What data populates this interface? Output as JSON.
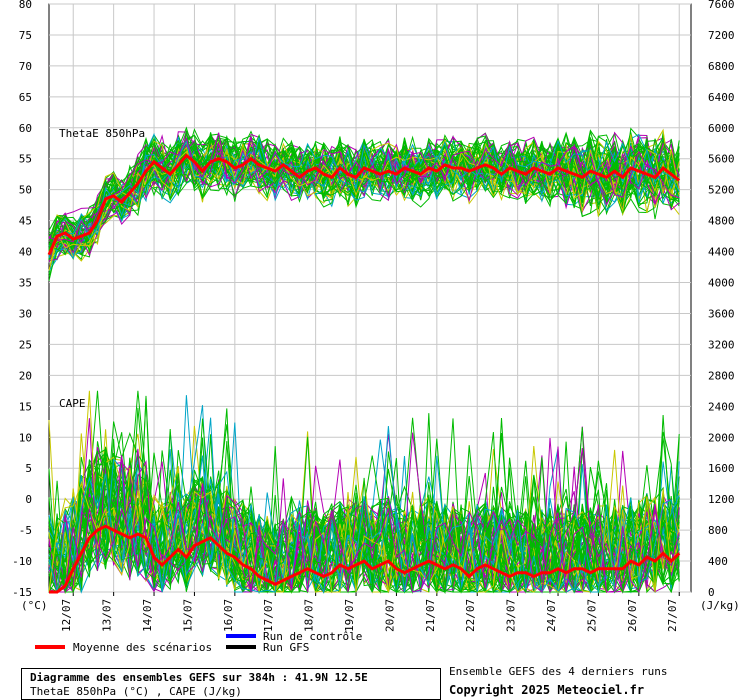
{
  "chart_data": {
    "type": "line",
    "left_axis": {
      "unit": "(°C)",
      "ticks": [
        "80",
        "75",
        "70",
        "65",
        "60",
        "55",
        "50",
        "45",
        "40",
        "35",
        "30",
        "25",
        "20",
        "15",
        "10",
        "5",
        "0",
        "-5",
        "-10",
        "-15"
      ],
      "ylim": [
        -15,
        80
      ]
    },
    "right_axis": {
      "unit": "(J/kg)",
      "ticks": [
        "7600",
        "7200",
        "6800",
        "6400",
        "6000",
        "5600",
        "5200",
        "4800",
        "4400",
        "4000",
        "3600",
        "3200",
        "2800",
        "2400",
        "2000",
        "1600",
        "1200",
        "800",
        "400",
        "0"
      ],
      "ylim": [
        0,
        7600
      ]
    },
    "x_ticks": [
      "12/07",
      "13/07",
      "14/07",
      "15/07",
      "16/07",
      "17/07",
      "18/07",
      "19/07",
      "20/07",
      "21/07",
      "22/07",
      "23/07",
      "24/07",
      "25/07",
      "26/07",
      "27/07"
    ],
    "grid": true,
    "panel_labels": [
      "ThetaE 850hPa",
      "CAPE"
    ],
    "series": [
      {
        "name": "Moyenne des scénarios",
        "color": "#ff0000",
        "axis": "left",
        "x": [
          11.4,
          11.6,
          11.8,
          12.0,
          12.2,
          12.4,
          12.6,
          12.8,
          13.0,
          13.2,
          13.4,
          13.6,
          13.8,
          14.0,
          14.2,
          14.4,
          14.6,
          14.8,
          15.0,
          15.2,
          15.4,
          15.6,
          15.8,
          16.0,
          16.2,
          16.4,
          16.6,
          16.8,
          17.0,
          17.2,
          17.4,
          17.6,
          17.8,
          18.0,
          18.2,
          18.4,
          18.6,
          18.8,
          19.0,
          19.2,
          19.4,
          19.6,
          19.8,
          20.0,
          20.2,
          20.4,
          20.6,
          20.8,
          21.0,
          21.2,
          21.4,
          21.6,
          21.8,
          22.0,
          22.2,
          22.4,
          22.6,
          22.8,
          23.0,
          23.2,
          23.4,
          23.6,
          23.8,
          24.0,
          24.2,
          24.4,
          24.6,
          24.8,
          25.0,
          25.2,
          25.4,
          25.6,
          25.8,
          26.0,
          26.2,
          26.4,
          26.6,
          26.8,
          27.0
        ],
        "y": [
          39.5,
          42.5,
          43,
          42,
          42.5,
          43,
          45,
          48.5,
          49,
          48,
          49.5,
          51,
          53,
          54.5,
          53.5,
          52.5,
          54,
          55.5,
          54.5,
          53,
          54.5,
          55,
          54.5,
          53.5,
          54,
          55,
          54,
          53.5,
          53,
          54,
          53,
          52,
          53,
          53.5,
          52.5,
          52,
          53.5,
          52.5,
          52,
          53.5,
          53,
          52.5,
          53,
          52.5,
          53.5,
          53,
          52.5,
          53.5,
          53,
          54,
          53.5,
          53.5,
          53,
          53.5,
          54,
          53.5,
          52.5,
          53.5,
          53,
          52.5,
          53.5,
          53,
          52.5,
          53.5,
          53,
          52.5,
          52,
          53,
          52.5,
          52,
          53,
          52,
          53.5,
          53,
          52.5,
          52,
          53.5,
          52.5,
          51.5
        ]
      },
      {
        "name": "Moyenne des scénarios",
        "color": "#ff0000",
        "axis": "right",
        "x": [
          11.4,
          11.6,
          11.8,
          12.0,
          12.2,
          12.4,
          12.6,
          12.8,
          13.0,
          13.2,
          13.4,
          13.6,
          13.8,
          14.0,
          14.2,
          14.4,
          14.6,
          14.8,
          15.0,
          15.2,
          15.4,
          15.6,
          15.8,
          16.0,
          16.2,
          16.4,
          16.6,
          16.8,
          17.0,
          17.2,
          17.4,
          17.6,
          17.8,
          18.0,
          18.2,
          18.4,
          18.6,
          18.8,
          19.0,
          19.2,
          19.4,
          19.6,
          19.8,
          20.0,
          20.2,
          20.4,
          20.6,
          20.8,
          21.0,
          21.2,
          21.4,
          21.6,
          21.8,
          22.0,
          22.2,
          22.4,
          22.6,
          22.8,
          23.0,
          23.2,
          23.4,
          23.6,
          23.8,
          24.0,
          24.2,
          24.4,
          24.6,
          24.8,
          25.0,
          25.2,
          25.4,
          25.6,
          25.8,
          26.0,
          26.2,
          26.4,
          26.6,
          26.8,
          27.0
        ],
        "y": [
          0,
          0,
          80,
          300,
          500,
          700,
          800,
          850,
          800,
          750,
          700,
          750,
          700,
          450,
          350,
          450,
          550,
          450,
          600,
          650,
          700,
          600,
          500,
          450,
          350,
          300,
          200,
          150,
          100,
          150,
          200,
          250,
          300,
          250,
          200,
          250,
          350,
          300,
          350,
          400,
          300,
          350,
          400,
          300,
          250,
          300,
          350,
          400,
          350,
          300,
          350,
          300,
          200,
          300,
          350,
          300,
          250,
          200,
          250,
          250,
          200,
          250,
          250,
          300,
          250,
          300,
          300,
          250,
          300,
          300,
          300,
          300,
          400,
          350,
          450,
          400,
          500,
          400,
          500
        ]
      }
    ],
    "legend": [
      "Run de contrôle",
      "Run GFS",
      "Moyenne des scénarios"
    ],
    "legend_colors": {
      "control": "#0000ff",
      "gfs": "#000000",
      "mean": "#ff0000"
    },
    "member_colors": [
      "#00bb00",
      "#00bb00",
      "#00bb00",
      "#00bb00",
      "#c8c800",
      "#00a5c8",
      "#b400b4"
    ],
    "title": "Diagramme des ensembles GEFS sur 384h : 41.9N 12.5E",
    "subtitle": "ThetaE 850hPa (°C) , CAPE (J/kg)",
    "note": "Ensemble GEFS des 4 derniers runs",
    "copyright": "Copyright 2025 Meteociel.fr"
  }
}
